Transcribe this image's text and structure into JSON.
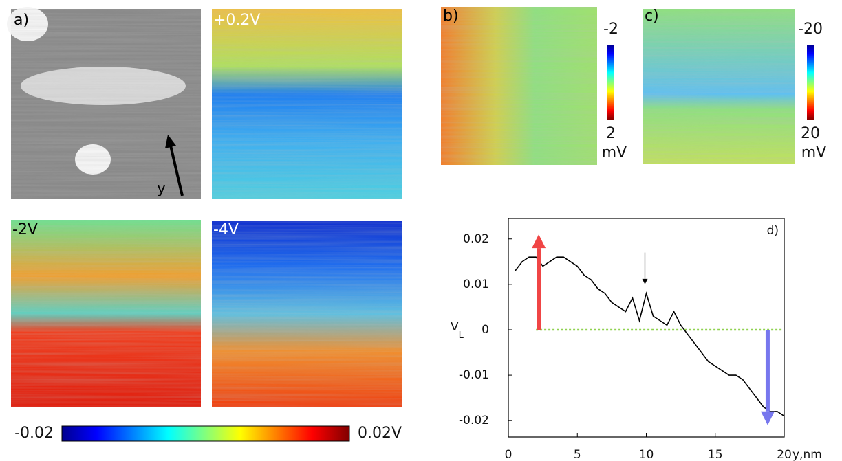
{
  "figure": {
    "panels": [
      {
        "label": "a)",
        "label_color": "#000000"
      },
      {
        "label": "+0.2V",
        "label_color": "#ffffff"
      },
      {
        "label": "-2V",
        "label_color": "#000000"
      },
      {
        "label": "-4V",
        "label_color": "#ffffff"
      },
      {
        "label": "b)",
        "label_color": "#000000"
      },
      {
        "label": "c)",
        "label_color": "#000000"
      }
    ],
    "direction_label": "y",
    "colorbars": [
      {
        "lim": [
          -0.02,
          0.02
        ],
        "ticks": [
          {
            "value": -0.02,
            "label": "-0.02"
          },
          {
            "value": 0.02,
            "label": "0.02V"
          }
        ]
      },
      {
        "lim": [
          -2,
          2
        ],
        "ticks": [
          -2,
          2
        ],
        "unit": "mV"
      },
      {
        "lim": [
          -20,
          20
        ],
        "ticks": [
          -20,
          20
        ],
        "unit": "mV"
      }
    ]
  },
  "chart_data": {
    "type": "line",
    "panel_label": "d)",
    "xlabel": "y,nm",
    "ylabel": {
      "symbol": "V",
      "subscript": "L"
    },
    "color": "#000000",
    "x": [
      0.5,
      1,
      1.5,
      2,
      2.5,
      3,
      3.5,
      4,
      4.5,
      5,
      5.5,
      6,
      6.5,
      7,
      7.5,
      8,
      8.5,
      9,
      9.5,
      10,
      10.5,
      11,
      11.5,
      12,
      12.5,
      13,
      13.5,
      14,
      14.5,
      15,
      15.5,
      16,
      16.5,
      17,
      17.5,
      18,
      18.5,
      19,
      19.5,
      20
    ],
    "values": [
      0.013,
      0.015,
      0.016,
      0.016,
      0.014,
      0.015,
      0.016,
      0.016,
      0.015,
      0.014,
      0.012,
      0.011,
      0.009,
      0.008,
      0.006,
      0.005,
      0.004,
      0.007,
      0.002,
      0.008,
      0.003,
      0.002,
      0.001,
      0.004,
      0.001,
      -0.001,
      -0.003,
      -0.005,
      -0.007,
      -0.008,
      -0.009,
      -0.01,
      -0.01,
      -0.011,
      -0.013,
      -0.015,
      -0.017,
      -0.018,
      -0.018,
      -0.019
    ],
    "xlim": [
      0,
      20
    ],
    "xticks": [
      0,
      5,
      10,
      15,
      20
    ],
    "ylim": [
      -0.0236,
      0.0245
    ],
    "yticks": [
      0.02,
      0.01,
      0,
      -0.01,
      -0.02
    ],
    "reference_line": {
      "y": 0,
      "x_start": 2,
      "color": "#8fd14f"
    },
    "arrows": [
      {
        "x": 2.2,
        "from": 0,
        "to": 0.021,
        "color": "#f04545"
      },
      {
        "x": 18.8,
        "from": 0,
        "to": -0.021,
        "color": "#7777ee"
      },
      {
        "x": 9.9,
        "from": 0.017,
        "to": 0.01,
        "color": "#000000"
      }
    ]
  }
}
